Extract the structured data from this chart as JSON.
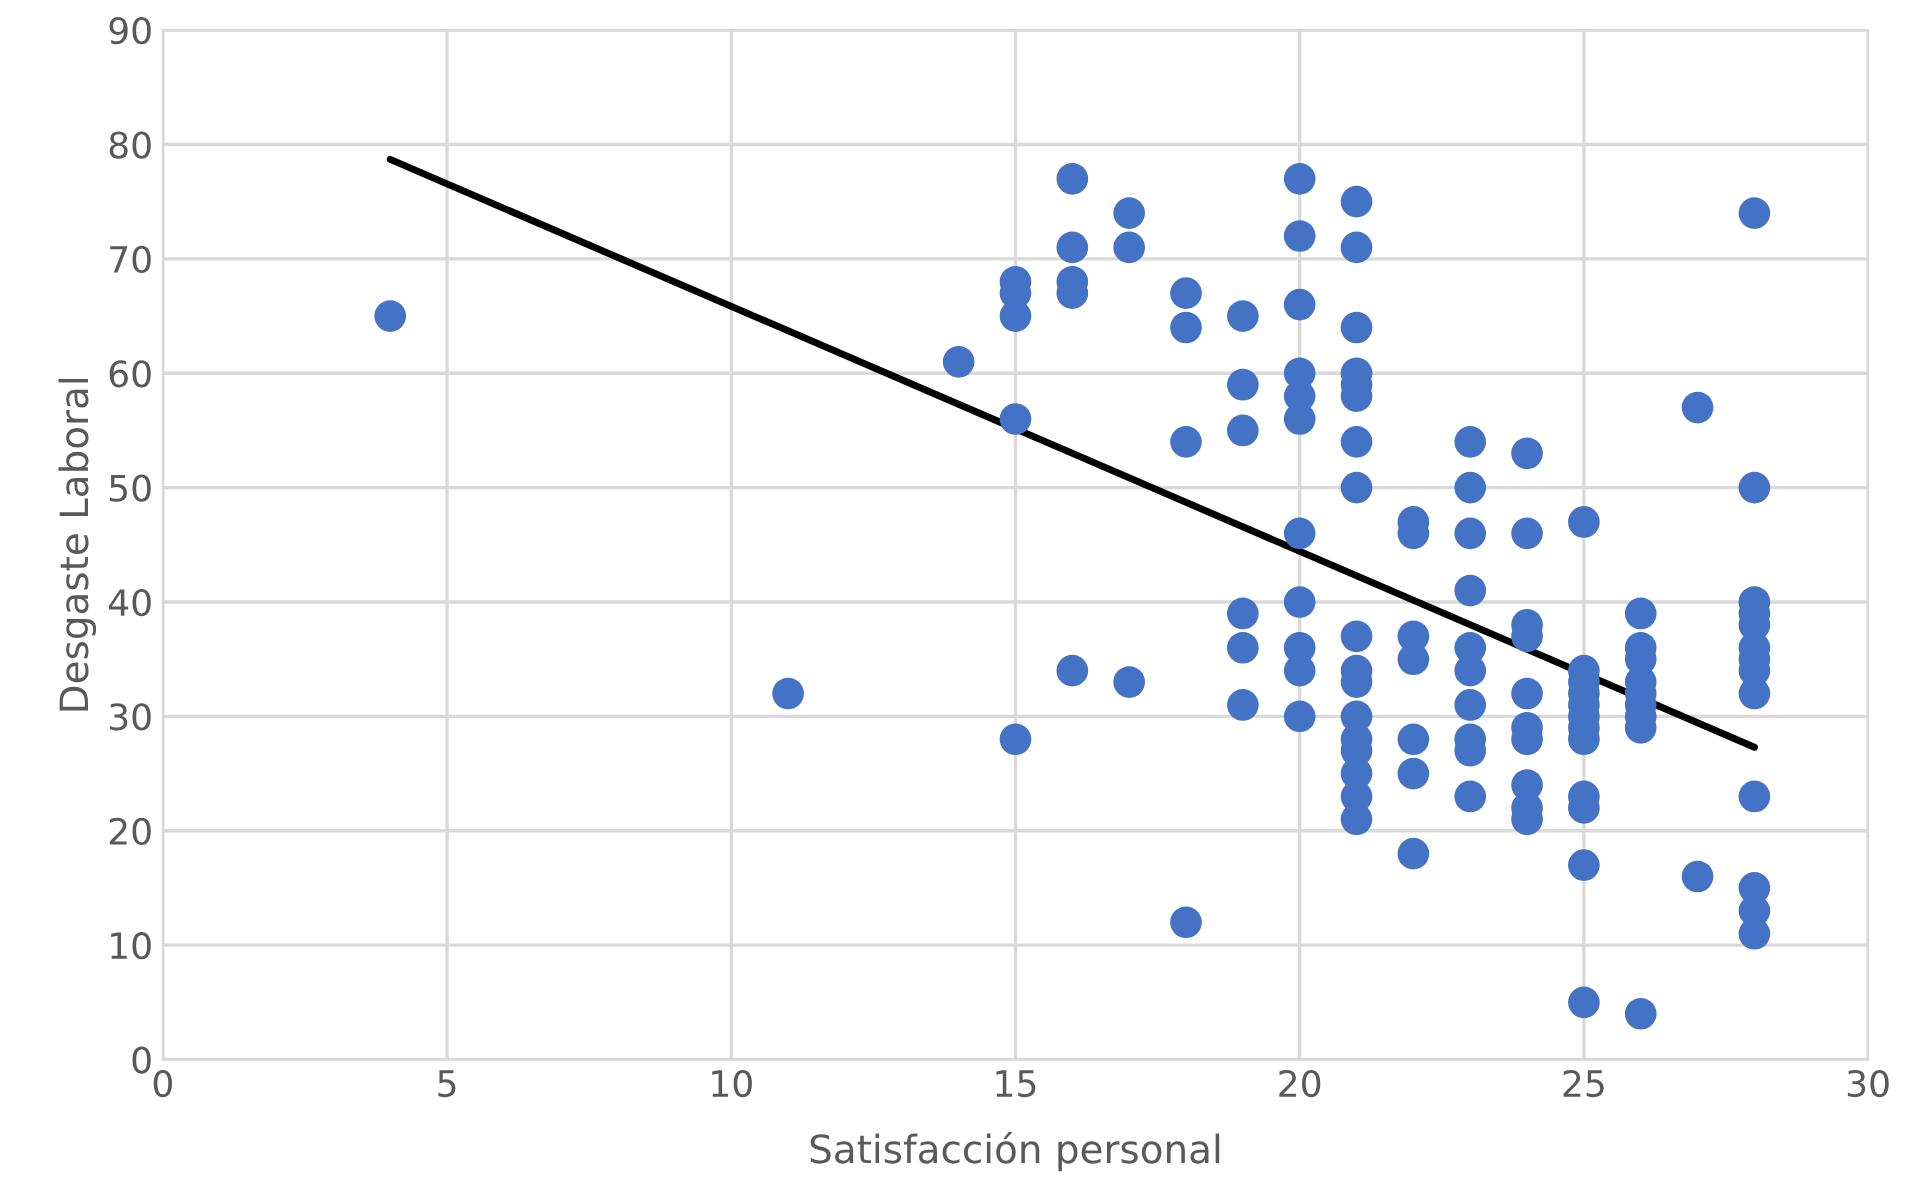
{
  "chart_data": {
    "type": "scatter",
    "xlabel": "Satisfacción personal",
    "ylabel": "Desgaste Laboral",
    "xlim": [
      0,
      30
    ],
    "ylim": [
      0,
      90
    ],
    "xticks": [
      0,
      5,
      10,
      15,
      20,
      25,
      30
    ],
    "yticks": [
      0,
      10,
      20,
      30,
      40,
      50,
      60,
      70,
      80,
      90
    ],
    "grid": true,
    "legend": false,
    "series": [
      {
        "type": "scatter",
        "color": "#4472c4",
        "marker": "circle",
        "x": [
          4,
          11,
          14,
          15,
          15,
          15,
          15,
          15,
          16,
          16,
          16,
          16,
          16,
          17,
          17,
          17,
          18,
          18,
          18,
          18,
          19,
          19,
          19,
          19,
          19,
          19,
          20,
          20,
          20,
          20,
          20,
          20,
          20,
          20,
          20,
          20,
          20,
          21,
          21,
          21,
          21,
          21,
          21,
          21,
          21,
          21,
          21,
          21,
          21,
          21,
          21,
          21,
          21,
          21,
          22,
          22,
          22,
          22,
          22,
          22,
          22,
          23,
          23,
          23,
          23,
          23,
          23,
          23,
          23,
          23,
          23,
          24,
          24,
          24,
          24,
          24,
          24,
          24,
          24,
          24,
          24,
          25,
          25,
          25,
          25,
          25,
          25,
          25,
          25,
          25,
          25,
          25,
          25,
          26,
          26,
          26,
          26,
          26,
          26,
          26,
          26,
          26,
          27,
          27,
          28,
          28,
          28,
          28,
          28,
          28,
          28,
          28,
          28,
          28,
          28,
          28,
          28
        ],
        "values": [
          65,
          32,
          61,
          68,
          67,
          65,
          56,
          28,
          77,
          71,
          68,
          67,
          34,
          74,
          71,
          33,
          67,
          64,
          54,
          12,
          65,
          59,
          55,
          39,
          36,
          31,
          77,
          72,
          66,
          60,
          58,
          56,
          46,
          40,
          36,
          34,
          30,
          75,
          71,
          64,
          60,
          59,
          58,
          54,
          50,
          37,
          34,
          33,
          30,
          28,
          27,
          25,
          23,
          21,
          47,
          46,
          37,
          35,
          28,
          25,
          18,
          54,
          50,
          46,
          41,
          36,
          34,
          31,
          28,
          27,
          23,
          53,
          46,
          38,
          37,
          32,
          29,
          28,
          24,
          22,
          21,
          47,
          34,
          33,
          32,
          31,
          30,
          29,
          28,
          23,
          22,
          17,
          5,
          39,
          36,
          35,
          33,
          32,
          31,
          30,
          29,
          4,
          57,
          16,
          74,
          50,
          40,
          39,
          38,
          36,
          35,
          34,
          32,
          23,
          15,
          13,
          11
        ]
      },
      {
        "type": "line",
        "color": "#000000",
        "marker": "none",
        "line_style": "solid",
        "x": [
          4,
          28
        ],
        "values": [
          78.7,
          27.3
        ]
      }
    ]
  }
}
